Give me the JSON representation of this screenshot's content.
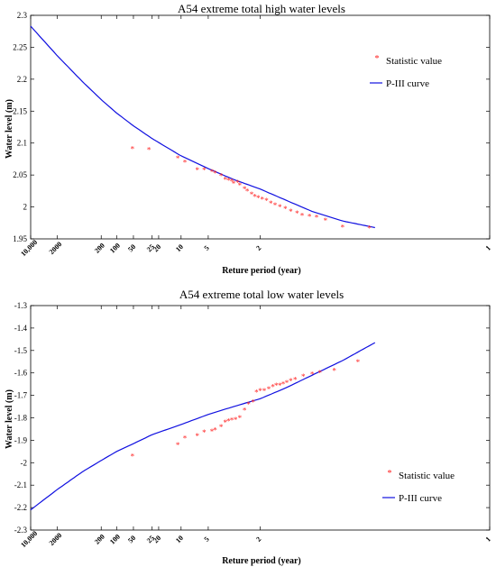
{
  "charts": [
    {
      "title": "A54 extreme total high water levels",
      "xlabel": "Reture period (year)",
      "ylabel": "Water level (m)",
      "yticks": [
        "2.3",
        "2.25",
        "2.2",
        "2.15",
        "2.1",
        "2.05",
        "2",
        "1.95"
      ],
      "xticks": [
        "10,000",
        "2000",
        "200",
        "100",
        "50",
        "25",
        "20",
        "10",
        "5",
        "2",
        "1"
      ],
      "legend": {
        "markers": "Statistic value",
        "curve": "P-III curve",
        "position": "top-right"
      }
    },
    {
      "title": "A54 extreme total low water levels",
      "xlabel": "Reture period (year)",
      "ylabel": "Water level (m)",
      "yticks": [
        "-1.3",
        "-1.4",
        "-1.5",
        "-1.6",
        "-1.7",
        "-1.8",
        "-1.9",
        "-2",
        "-2.1",
        "-2.2",
        "-2.3"
      ],
      "xticks": [
        "10,000",
        "2000",
        "200",
        "100",
        "50",
        "25",
        "20",
        "10",
        "5",
        "2",
        "1"
      ],
      "legend": {
        "markers": "Statistic value",
        "curve": "P-III curve",
        "position": "bottom-right"
      }
    }
  ],
  "chart_data": [
    {
      "type": "scatter",
      "title": "A54 extreme total high water levels",
      "xlabel": "Reture period (year)",
      "ylabel": "Water level (m)",
      "x_scale": "probability (return period)",
      "xlim_return_period": [
        10000,
        1
      ],
      "ylim": [
        1.95,
        2.3
      ],
      "grid": false,
      "legend_position": "top-right",
      "colors": {
        "markers": "#ff2020",
        "curve": "#1010e0"
      },
      "series": [
        {
          "name": "P-III curve",
          "kind": "line",
          "return_period": [
            10000,
            2000,
            500,
            200,
            100,
            50,
            25,
            10,
            5,
            3,
            2,
            1.5,
            1.25,
            1.1,
            1.03,
            1.0
          ],
          "values": [
            2.283,
            2.237,
            2.196,
            2.168,
            2.147,
            2.127,
            2.107,
            2.08,
            2.06,
            2.043,
            2.028,
            2.01,
            1.993,
            1.978,
            1.967,
            1.959
          ]
        },
        {
          "name": "Statistic value",
          "kind": "scatter",
          "return_period": [
            52,
            28,
            11,
            9,
            6.5,
            5.5,
            4.6,
            4.3,
            3.8,
            3.5,
            3.3,
            3.1,
            3.0,
            2.8,
            2.7,
            2.5,
            2.4,
            2.25,
            2.15,
            2.05,
            1.95,
            1.85,
            1.76,
            1.68,
            1.6,
            1.52,
            1.45,
            1.38,
            1.33,
            1.27,
            1.22,
            1.17,
            1.1,
            1.04
          ],
          "values": [
            2.091,
            2.09,
            2.076,
            2.07,
            2.058,
            2.058,
            2.055,
            2.053,
            2.049,
            2.043,
            2.042,
            2.04,
            2.037,
            2.038,
            2.034,
            2.028,
            2.025,
            2.02,
            2.016,
            2.014,
            2.012,
            2.01,
            2.006,
            2.003,
            2.0,
            1.997,
            1.993,
            1.99,
            1.987,
            1.985,
            1.984,
            1.979,
            1.968,
            1.967
          ]
        }
      ]
    },
    {
      "type": "scatter",
      "title": "A54 extreme total low water levels",
      "xlabel": "Reture period (year)",
      "ylabel": "Water level (m)",
      "x_scale": "probability (return period)",
      "xlim_return_period": [
        10000,
        1
      ],
      "ylim": [
        -2.3,
        -1.3
      ],
      "grid": false,
      "legend_position": "bottom-right",
      "colors": {
        "markers": "#ff2020",
        "curve": "#1010e0"
      },
      "series": [
        {
          "name": "P-III curve",
          "kind": "line",
          "return_period": [
            10000,
            2000,
            500,
            200,
            100,
            50,
            25,
            10,
            5,
            3,
            2,
            1.5,
            1.25,
            1.1,
            1.03,
            1.0
          ],
          "values": [
            -2.21,
            -2.12,
            -2.04,
            -1.99,
            -1.95,
            -1.915,
            -1.875,
            -1.83,
            -1.785,
            -1.75,
            -1.715,
            -1.665,
            -1.61,
            -1.545,
            -1.46,
            -1.36
          ]
        },
        {
          "name": "Statistic value",
          "kind": "scatter",
          "return_period": [
            52,
            11,
            9,
            6.5,
            5.5,
            4.6,
            4.3,
            3.8,
            3.5,
            3.3,
            3.1,
            2.9,
            2.7,
            2.5,
            2.35,
            2.2,
            2.1,
            2.0,
            1.9,
            1.8,
            1.72,
            1.66,
            1.6,
            1.55,
            1.5,
            1.45,
            1.4,
            1.32,
            1.25,
            1.2,
            1.13,
            1.06
          ],
          "values": [
            -1.97,
            -1.92,
            -1.89,
            -1.88,
            -1.865,
            -1.86,
            -1.855,
            -1.84,
            -1.82,
            -1.815,
            -1.81,
            -1.808,
            -1.8,
            -1.765,
            -1.74,
            -1.73,
            -1.685,
            -1.68,
            -1.68,
            -1.672,
            -1.662,
            -1.655,
            -1.655,
            -1.65,
            -1.643,
            -1.635,
            -1.63,
            -1.615,
            -1.605,
            -1.6,
            -1.59,
            -1.552
          ]
        }
      ]
    }
  ]
}
